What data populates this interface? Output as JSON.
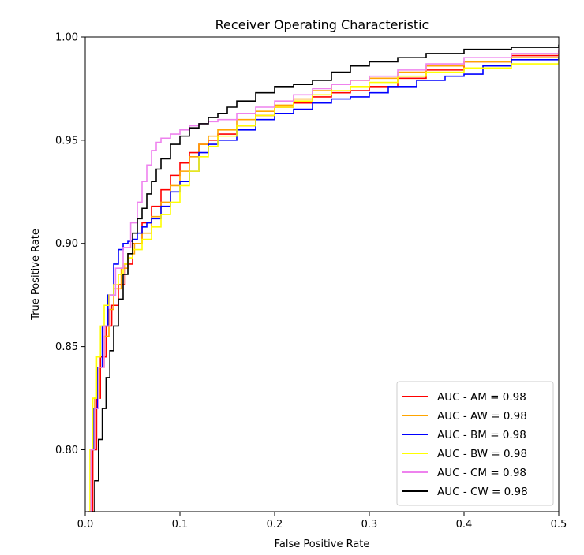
{
  "chart_data": {
    "type": "line",
    "title": "Receiver Operating Characteristic",
    "xlabel": "False Positive Rate",
    "ylabel": "True Positive Rate",
    "xlim": [
      0.0,
      0.5
    ],
    "ylim": [
      0.77,
      1.0
    ],
    "xticks": [
      0.0,
      0.1,
      0.2,
      0.3,
      0.4,
      0.5
    ],
    "xtick_labels": [
      "0.0",
      "0.1",
      "0.2",
      "0.3",
      "0.4",
      "0.5"
    ],
    "yticks": [
      0.8,
      0.85,
      0.9,
      0.95,
      1.0
    ],
    "ytick_labels": [
      "0.80",
      "0.85",
      "0.90",
      "0.95",
      "1.00"
    ],
    "grid": false,
    "legend_position": "bottom-right",
    "series": [
      {
        "name": "AUC  - AM = 0.98",
        "color": "#ff0000",
        "x": [
          0.006,
          0.008,
          0.012,
          0.016,
          0.022,
          0.028,
          0.035,
          0.042,
          0.05,
          0.06,
          0.07,
          0.08,
          0.09,
          0.1,
          0.11,
          0.12,
          0.13,
          0.14,
          0.16,
          0.18,
          0.2,
          0.22,
          0.24,
          0.26,
          0.28,
          0.3,
          0.33,
          0.36,
          0.4,
          0.45,
          0.5
        ],
        "y": [
          0.77,
          0.8,
          0.825,
          0.845,
          0.86,
          0.87,
          0.88,
          0.89,
          0.9,
          0.91,
          0.918,
          0.926,
          0.933,
          0.939,
          0.944,
          0.948,
          0.95,
          0.953,
          0.957,
          0.962,
          0.966,
          0.968,
          0.971,
          0.973,
          0.974,
          0.976,
          0.98,
          0.984,
          0.988,
          0.991,
          0.993
        ]
      },
      {
        "name": "AUC  - AW = 0.98",
        "color": "#ffa500",
        "x": [
          0.004,
          0.006,
          0.01,
          0.015,
          0.02,
          0.025,
          0.03,
          0.038,
          0.045,
          0.052,
          0.06,
          0.07,
          0.08,
          0.09,
          0.1,
          0.11,
          0.12,
          0.13,
          0.14,
          0.16,
          0.18,
          0.2,
          0.22,
          0.24,
          0.26,
          0.28,
          0.3,
          0.33,
          0.36,
          0.4,
          0.45,
          0.5
        ],
        "y": [
          0.77,
          0.8,
          0.825,
          0.84,
          0.855,
          0.868,
          0.878,
          0.888,
          0.895,
          0.9,
          0.905,
          0.913,
          0.92,
          0.928,
          0.935,
          0.942,
          0.948,
          0.952,
          0.955,
          0.96,
          0.964,
          0.967,
          0.97,
          0.974,
          0.977,
          0.979,
          0.98,
          0.983,
          0.986,
          0.988,
          0.99,
          0.992
        ]
      },
      {
        "name": "AUC  - BM = 0.98",
        "color": "#0000ff",
        "x": [
          0.004,
          0.006,
          0.009,
          0.013,
          0.018,
          0.024,
          0.03,
          0.035,
          0.04,
          0.045,
          0.05,
          0.055,
          0.06,
          0.065,
          0.07,
          0.08,
          0.09,
          0.1,
          0.11,
          0.12,
          0.13,
          0.14,
          0.16,
          0.18,
          0.2,
          0.22,
          0.24,
          0.26,
          0.28,
          0.3,
          0.32,
          0.35,
          0.38,
          0.4,
          0.42,
          0.45,
          0.5
        ],
        "y": [
          0.77,
          0.8,
          0.82,
          0.84,
          0.86,
          0.875,
          0.89,
          0.897,
          0.9,
          0.901,
          0.902,
          0.905,
          0.908,
          0.91,
          0.912,
          0.918,
          0.925,
          0.93,
          0.935,
          0.944,
          0.948,
          0.95,
          0.955,
          0.96,
          0.963,
          0.965,
          0.968,
          0.97,
          0.971,
          0.973,
          0.976,
          0.979,
          0.981,
          0.982,
          0.986,
          0.989,
          0.99
        ]
      },
      {
        "name": "AUC  - BW = 0.98",
        "color": "#ffff00",
        "x": [
          0.003,
          0.005,
          0.008,
          0.012,
          0.016,
          0.02,
          0.025,
          0.03,
          0.035,
          0.04,
          0.045,
          0.05,
          0.06,
          0.07,
          0.08,
          0.09,
          0.1,
          0.11,
          0.12,
          0.13,
          0.14,
          0.16,
          0.18,
          0.2,
          0.22,
          0.24,
          0.26,
          0.28,
          0.3,
          0.33,
          0.36,
          0.4,
          0.45,
          0.5
        ],
        "y": [
          0.77,
          0.8,
          0.825,
          0.845,
          0.86,
          0.87,
          0.875,
          0.88,
          0.885,
          0.89,
          0.893,
          0.897,
          0.902,
          0.908,
          0.914,
          0.92,
          0.928,
          0.935,
          0.942,
          0.947,
          0.952,
          0.957,
          0.962,
          0.966,
          0.969,
          0.972,
          0.974,
          0.976,
          0.978,
          0.981,
          0.983,
          0.985,
          0.987,
          0.989
        ]
      },
      {
        "name": "AUC  - CM = 0.98",
        "color": "#ee82ee",
        "x": [
          0.004,
          0.006,
          0.01,
          0.014,
          0.02,
          0.026,
          0.032,
          0.04,
          0.048,
          0.055,
          0.06,
          0.065,
          0.07,
          0.075,
          0.08,
          0.09,
          0.1,
          0.11,
          0.12,
          0.13,
          0.14,
          0.16,
          0.18,
          0.2,
          0.22,
          0.24,
          0.26,
          0.28,
          0.3,
          0.33,
          0.36,
          0.4,
          0.45,
          0.5
        ],
        "y": [
          0.77,
          0.8,
          0.82,
          0.84,
          0.86,
          0.875,
          0.888,
          0.898,
          0.91,
          0.92,
          0.93,
          0.938,
          0.945,
          0.949,
          0.951,
          0.953,
          0.955,
          0.957,
          0.958,
          0.959,
          0.96,
          0.963,
          0.966,
          0.969,
          0.972,
          0.975,
          0.977,
          0.979,
          0.981,
          0.984,
          0.987,
          0.99,
          0.992,
          0.994
        ]
      },
      {
        "name": "AUC  - CW = 0.98",
        "color": "#000000",
        "x": [
          0.008,
          0.01,
          0.014,
          0.018,
          0.022,
          0.026,
          0.03,
          0.035,
          0.04,
          0.045,
          0.05,
          0.055,
          0.06,
          0.065,
          0.07,
          0.075,
          0.08,
          0.09,
          0.1,
          0.11,
          0.12,
          0.13,
          0.14,
          0.15,
          0.16,
          0.18,
          0.2,
          0.22,
          0.24,
          0.26,
          0.28,
          0.3,
          0.33,
          0.36,
          0.4,
          0.45,
          0.5
        ],
        "y": [
          0.77,
          0.785,
          0.805,
          0.82,
          0.835,
          0.848,
          0.86,
          0.873,
          0.885,
          0.895,
          0.905,
          0.912,
          0.917,
          0.924,
          0.93,
          0.936,
          0.941,
          0.948,
          0.952,
          0.956,
          0.958,
          0.961,
          0.963,
          0.966,
          0.969,
          0.973,
          0.976,
          0.977,
          0.979,
          0.983,
          0.986,
          0.988,
          0.99,
          0.992,
          0.994,
          0.995,
          0.996
        ]
      }
    ]
  }
}
